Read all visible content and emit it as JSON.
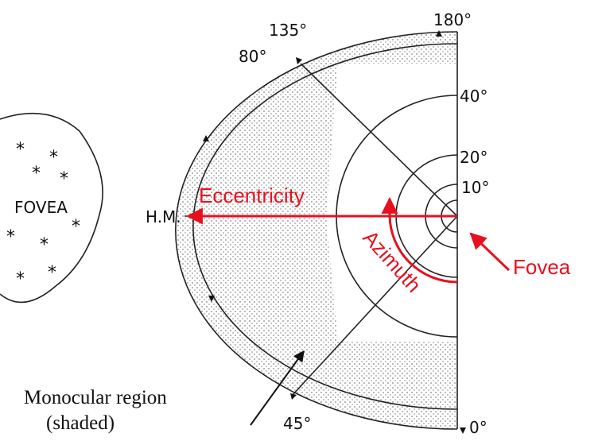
{
  "labels": {
    "a135": "135°",
    "a180": "180°",
    "a80": "80°",
    "e40": "40°",
    "e20": "20°",
    "e10": "10°",
    "fovea_blob": "FOVEA",
    "hm": "H.M.",
    "eccentricity": "Eccentricity",
    "azimuth": "Azimuth",
    "fovea": "Fovea",
    "monocular": "Monocular region",
    "shaded": "(shaded)",
    "a45": "45°",
    "a0": "0°"
  }
}
